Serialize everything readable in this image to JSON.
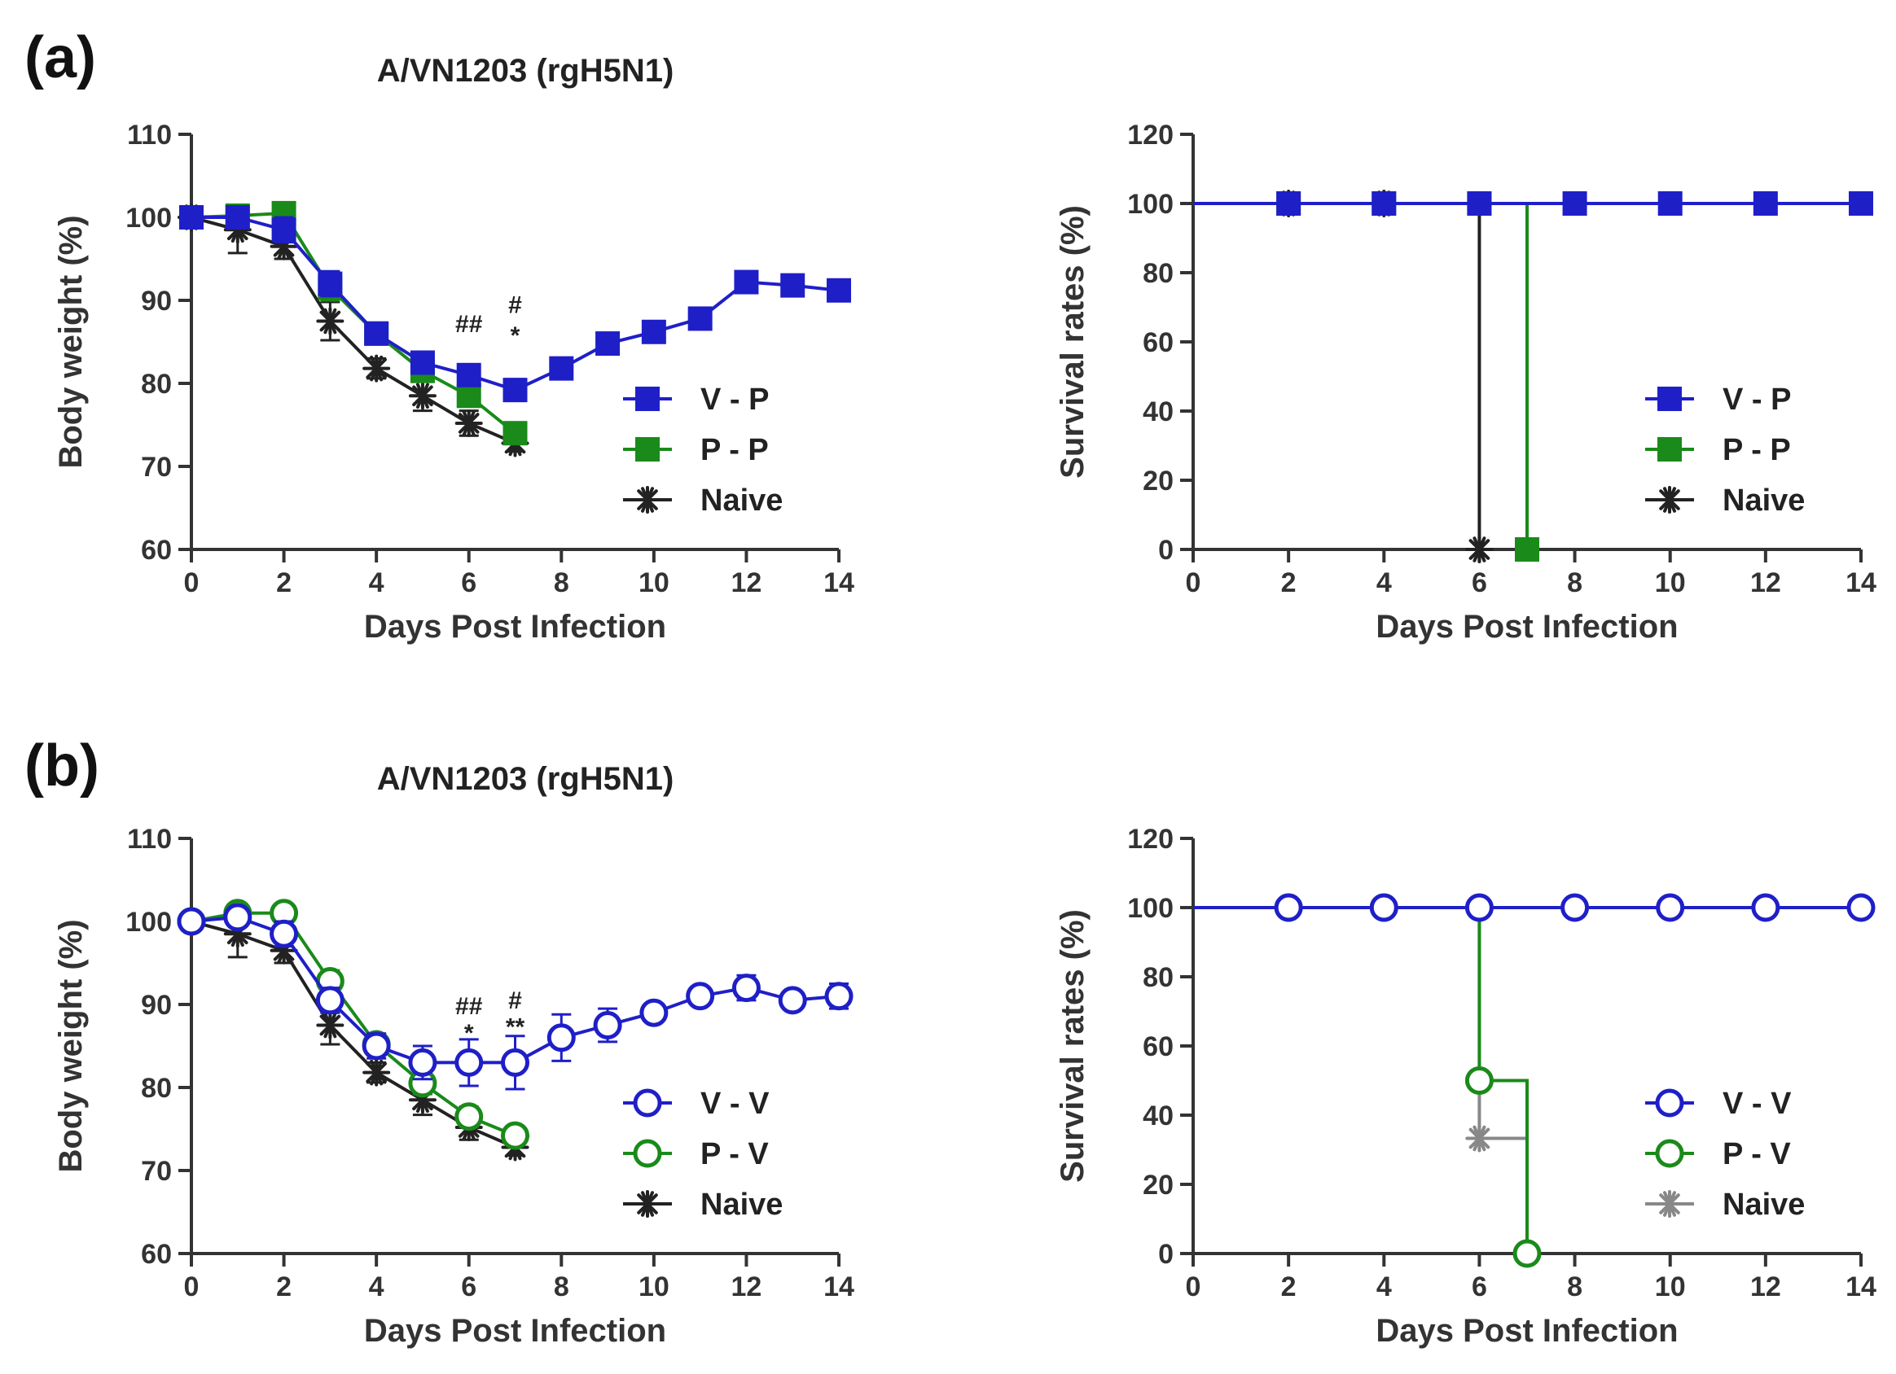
{
  "figure": {
    "panel_a_label": "(a)",
    "panel_b_label": "(b)"
  },
  "colors": {
    "blue": "#1f1fc8",
    "green": "#1a8a1a",
    "black": "#222222",
    "gray": "#555555",
    "naive_survival_b": "#888888"
  },
  "chart_data": [
    {
      "id": "a-weight",
      "type": "line",
      "title": "A/VN1203 (rgH5N1)",
      "xlabel": "Days Post Infection",
      "ylabel": "Body weight (%)",
      "xlim": [
        0,
        14
      ],
      "ylim": [
        60,
        110
      ],
      "xticks": [
        0,
        2,
        4,
        6,
        8,
        10,
        12,
        14
      ],
      "yticks": [
        60,
        70,
        80,
        90,
        100,
        110
      ],
      "legend_position": "lower-right",
      "series": [
        {
          "name": "V - P",
          "marker": "square",
          "color": "blue",
          "x": [
            0,
            1,
            2,
            3,
            4,
            5,
            6,
            7,
            8,
            9,
            10,
            11,
            12,
            13,
            14
          ],
          "y": [
            100,
            100,
            98.5,
            92,
            86,
            82.5,
            81,
            79.2,
            81.8,
            84.8,
            86.2,
            87.8,
            92.2,
            91.8,
            91.2
          ],
          "err": [
            0.8,
            1.2,
            1.5,
            1.5,
            1.2,
            1.2,
            1.3,
            1.3,
            1,
            1,
            1,
            1,
            1.2,
            1,
            1
          ]
        },
        {
          "name": "P - P",
          "marker": "square",
          "color": "green",
          "x": [
            0,
            1,
            2,
            3,
            4,
            5,
            6,
            7
          ],
          "y": [
            100,
            100.2,
            100.5,
            91.5,
            86,
            81.5,
            78.5,
            74
          ],
          "err": [
            0.8,
            1,
            1,
            1.5,
            1.2,
            1.3,
            1.3,
            1
          ]
        },
        {
          "name": "Naive",
          "marker": "star",
          "color": "black",
          "x": [
            0,
            1,
            2,
            3,
            4,
            5,
            6,
            7
          ],
          "y": [
            100,
            98.5,
            96.5,
            87.5,
            81.8,
            78.5,
            75.2,
            72.8
          ],
          "err": [
            0.8,
            2.8,
            1.5,
            2.3,
            1.2,
            1.8,
            1.5,
            1
          ]
        }
      ],
      "annotations": [
        {
          "x": 6,
          "y": 86.2,
          "text": "##"
        },
        {
          "x": 7,
          "y": 88.5,
          "text": "#"
        },
        {
          "x": 7,
          "y": 84.8,
          "text": "*"
        }
      ]
    },
    {
      "id": "a-survival",
      "type": "line",
      "title": "",
      "xlabel": "Days Post Infection",
      "ylabel": "Survival rates (%)",
      "xlim": [
        0,
        14
      ],
      "ylim": [
        0,
        120
      ],
      "xticks": [
        0,
        2,
        4,
        6,
        8,
        10,
        12,
        14
      ],
      "yticks": [
        0,
        20,
        40,
        60,
        80,
        100,
        120
      ],
      "legend_position": "lower-right",
      "step": true,
      "series": [
        {
          "name": "V - P",
          "marker": "square",
          "color": "blue",
          "x": [
            0,
            2,
            4,
            6,
            8,
            10,
            12,
            14
          ],
          "y": [
            100,
            100,
            100,
            100,
            100,
            100,
            100,
            100
          ]
        },
        {
          "name": "P - P",
          "marker": "square",
          "color": "green",
          "x": [
            0,
            2,
            4,
            6,
            7
          ],
          "y": [
            100,
            100,
            100,
            100,
            0
          ]
        },
        {
          "name": "Naive",
          "marker": "star",
          "color": "black",
          "x": [
            0,
            2,
            4,
            6
          ],
          "y": [
            100,
            100,
            100,
            0
          ]
        }
      ]
    },
    {
      "id": "b-weight",
      "type": "line",
      "title": "A/VN1203 (rgH5N1)",
      "xlabel": "Days Post Infection",
      "ylabel": "Body weight (%)",
      "xlim": [
        0,
        14
      ],
      "ylim": [
        60,
        110
      ],
      "xticks": [
        0,
        2,
        4,
        6,
        8,
        10,
        12,
        14
      ],
      "yticks": [
        60,
        70,
        80,
        90,
        100,
        110
      ],
      "legend_position": "lower-right",
      "series": [
        {
          "name": "V - V",
          "marker": "circle",
          "color": "blue",
          "x": [
            0,
            1,
            2,
            3,
            4,
            5,
            6,
            7,
            8,
            9,
            10,
            11,
            12,
            13,
            14
          ],
          "y": [
            100,
            100.5,
            98.5,
            90.5,
            85,
            83,
            83,
            83,
            86,
            87.5,
            89,
            91,
            92,
            90.5,
            91
          ],
          "err": [
            0.8,
            1,
            1.5,
            1.5,
            1.5,
            2,
            2.8,
            3.2,
            2.8,
            2,
            1,
            1,
            1.5,
            1,
            1.5
          ]
        },
        {
          "name": "P - V",
          "marker": "circle",
          "color": "green",
          "x": [
            0,
            1,
            2,
            3,
            4,
            5,
            6,
            7
          ],
          "y": [
            100,
            101,
            101,
            92.8,
            85.2,
            80.5,
            76.5,
            74.2
          ],
          "err": [
            0.8,
            0.8,
            0.8,
            1.3,
            1.2,
            1.3,
            1.2,
            1
          ]
        },
        {
          "name": "Naive",
          "marker": "star",
          "color": "black",
          "x": [
            0,
            1,
            2,
            3,
            4,
            5,
            6,
            7
          ],
          "y": [
            100,
            98.5,
            96.5,
            87.5,
            81.8,
            78.5,
            75.2,
            72.8
          ],
          "err": [
            0.8,
            2.8,
            1.5,
            2.3,
            1.2,
            1.8,
            1.5,
            1
          ]
        }
      ],
      "annotations": [
        {
          "x": 6,
          "y": 88.8,
          "text": "##"
        },
        {
          "x": 7,
          "y": 89.5,
          "text": "#"
        },
        {
          "x": 6,
          "y": 85.6,
          "text": "*"
        },
        {
          "x": 7,
          "y": 86.3,
          "text": "**"
        }
      ]
    },
    {
      "id": "b-survival",
      "type": "line",
      "title": "",
      "xlabel": "Days Post Infection",
      "ylabel": "Survival rates (%)",
      "xlim": [
        0,
        14
      ],
      "ylim": [
        0,
        120
      ],
      "xticks": [
        0,
        2,
        4,
        6,
        8,
        10,
        12,
        14
      ],
      "yticks": [
        0,
        20,
        40,
        60,
        80,
        100,
        120
      ],
      "legend_position": "lower-right",
      "step": true,
      "series": [
        {
          "name": "V - V",
          "marker": "circle",
          "color": "blue",
          "x": [
            0,
            2,
            4,
            6,
            8,
            10,
            12,
            14
          ],
          "y": [
            100,
            100,
            100,
            100,
            100,
            100,
            100,
            100
          ]
        },
        {
          "name": "P - V",
          "marker": "circle",
          "color": "green",
          "x": [
            0,
            2,
            4,
            6,
            7
          ],
          "y": [
            100,
            100,
            100,
            50,
            0
          ]
        },
        {
          "name": "Naive",
          "marker": "star",
          "color": "naive_survival_b",
          "x": [
            0,
            2,
            4,
            6,
            7
          ],
          "y": [
            100,
            100,
            100,
            33.3,
            0
          ]
        }
      ]
    }
  ]
}
